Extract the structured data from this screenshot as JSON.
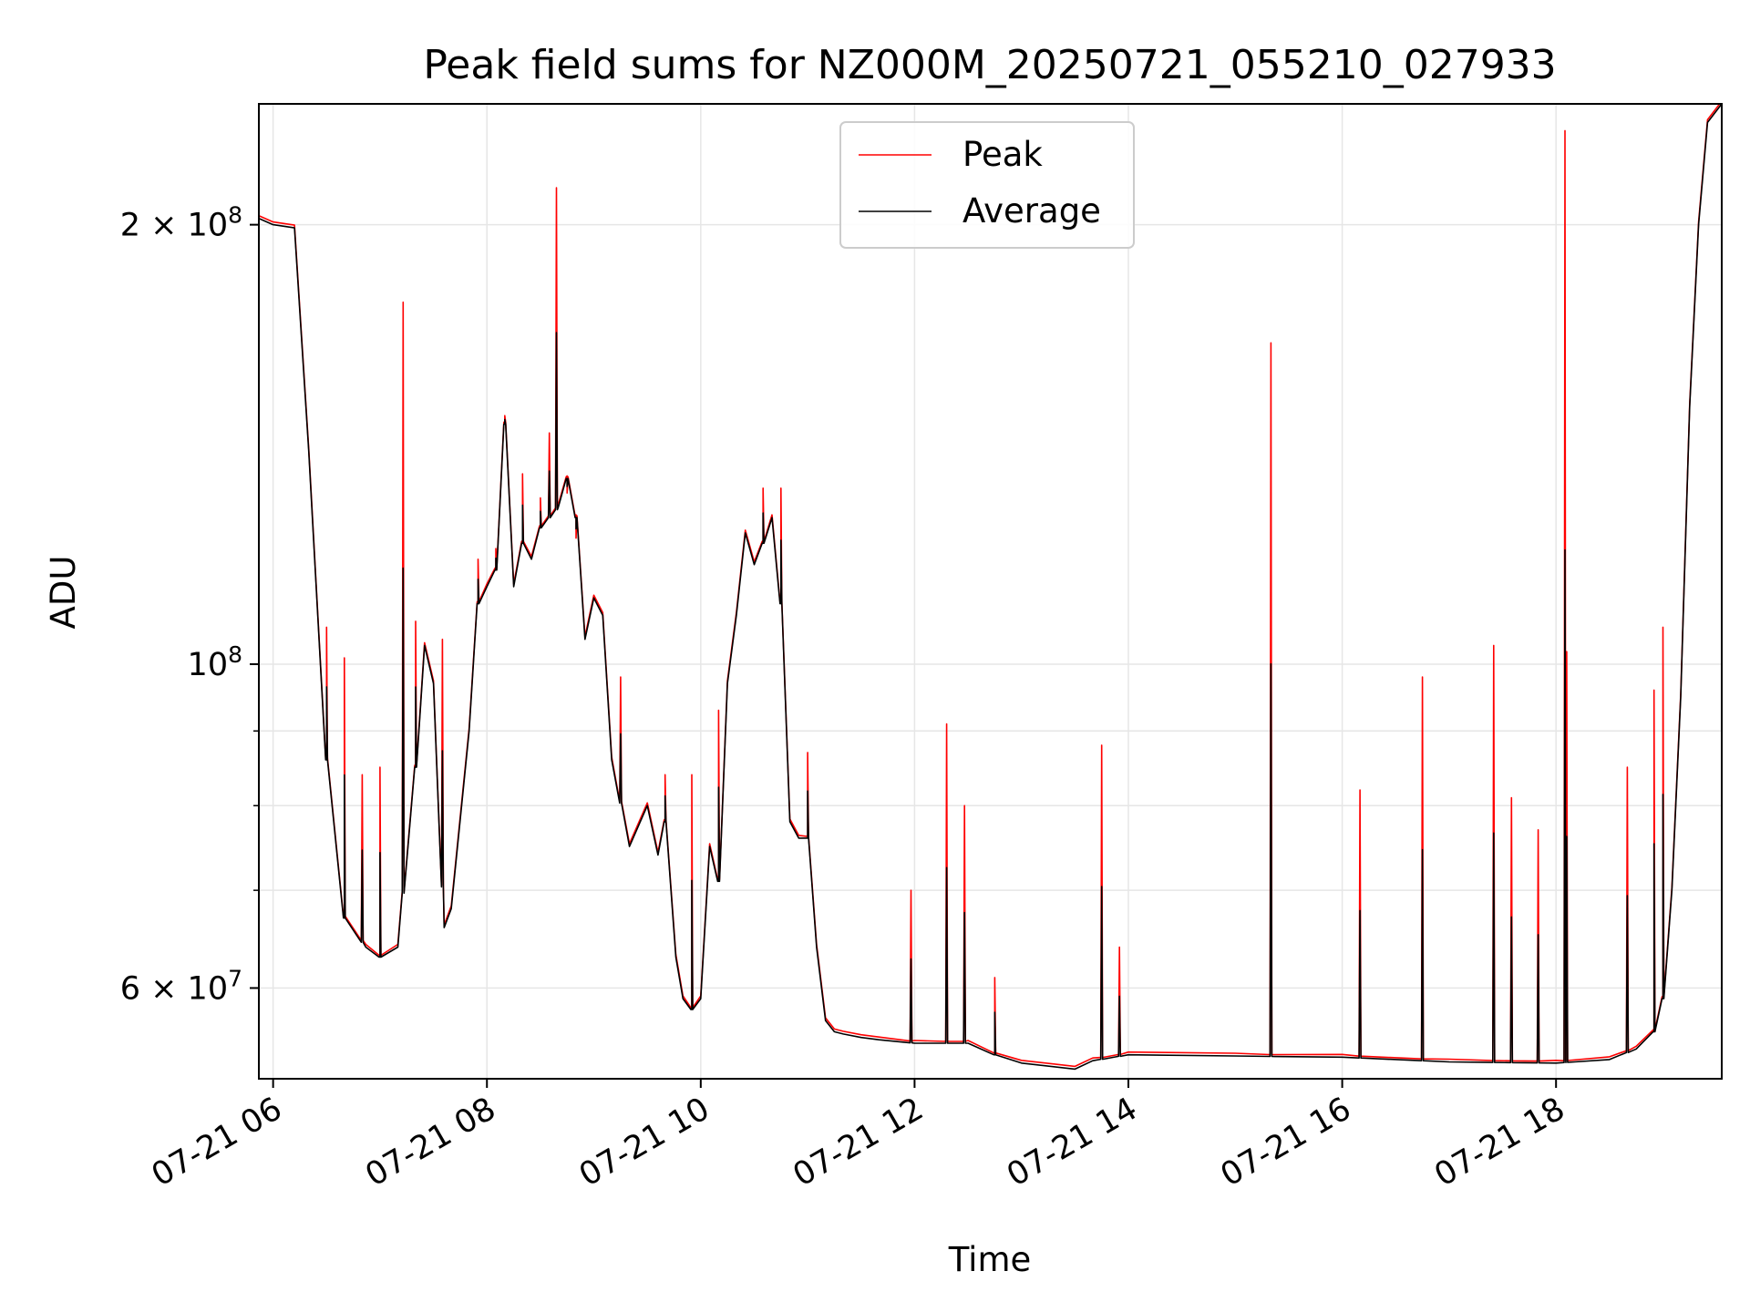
{
  "chart_data": {
    "type": "line",
    "title": "Peak field sums for NZ000M_20250721_055210_027933",
    "xlabel": "Time",
    "ylabel": "ADU",
    "yscale": "log",
    "ylim": [
      52000000,
      242000000
    ],
    "xlim": [
      "2025-07-21 05:52",
      "2025-07-21 19:33"
    ],
    "grid": true,
    "legend": {
      "placement": "top-center",
      "entries": [
        "Peak",
        "Average"
      ]
    },
    "x_ticks": [
      {
        "value": "2025-07-21 06:00",
        "label": "07-21 06"
      },
      {
        "value": "2025-07-21 08:00",
        "label": "07-21 08"
      },
      {
        "value": "2025-07-21 10:00",
        "label": "07-21 10"
      },
      {
        "value": "2025-07-21 12:00",
        "label": "07-21 12"
      },
      {
        "value": "2025-07-21 14:00",
        "label": "07-21 14"
      },
      {
        "value": "2025-07-21 16:00",
        "label": "07-21 16"
      },
      {
        "value": "2025-07-21 18:00",
        "label": "07-21 18"
      }
    ],
    "y_major_ticks": [
      {
        "value": 60000000,
        "mantissa": "6",
        "exponent": "7"
      },
      {
        "value": 100000000,
        "mantissa": "",
        "exponent": "8"
      },
      {
        "value": 200000000,
        "mantissa": "2",
        "exponent": "8"
      }
    ],
    "y_minor_ticks": [
      70000000,
      80000000,
      90000000
    ],
    "times": [
      "2025-07-21 05:52",
      "2025-07-21 06:00",
      "2025-07-21 06:12",
      "2025-07-21 06:20",
      "2025-07-21 06:30",
      "2025-07-21 06:40",
      "2025-07-21 06:52",
      "2025-07-21 07:00",
      "2025-07-21 07:10",
      "2025-07-21 07:20",
      "2025-07-21 07:25",
      "2025-07-21 07:30",
      "2025-07-21 07:36",
      "2025-07-21 07:40",
      "2025-07-21 07:50",
      "2025-07-21 07:55",
      "2025-07-21 08:00",
      "2025-07-21 08:05",
      "2025-07-21 08:10",
      "2025-07-21 08:15",
      "2025-07-21 08:20",
      "2025-07-21 08:25",
      "2025-07-21 08:30",
      "2025-07-21 08:40",
      "2025-07-21 08:45",
      "2025-07-21 08:50",
      "2025-07-21 08:55",
      "2025-07-21 09:00",
      "2025-07-21 09:05",
      "2025-07-21 09:10",
      "2025-07-21 09:20",
      "2025-07-21 09:30",
      "2025-07-21 09:36",
      "2025-07-21 09:40",
      "2025-07-21 09:46",
      "2025-07-21 09:50",
      "2025-07-21 09:55",
      "2025-07-21 10:00",
      "2025-07-21 10:05",
      "2025-07-21 10:10",
      "2025-07-21 10:15",
      "2025-07-21 10:20",
      "2025-07-21 10:25",
      "2025-07-21 10:30",
      "2025-07-21 10:35",
      "2025-07-21 10:40",
      "2025-07-21 10:45",
      "2025-07-21 10:50",
      "2025-07-21 10:55",
      "2025-07-21 11:00",
      "2025-07-21 11:05",
      "2025-07-21 11:10",
      "2025-07-21 11:15",
      "2025-07-21 11:20",
      "2025-07-21 11:30",
      "2025-07-21 11:40",
      "2025-07-21 12:00",
      "2025-07-21 12:30",
      "2025-07-21 12:45",
      "2025-07-21 13:00",
      "2025-07-21 13:30",
      "2025-07-21 13:40",
      "2025-07-21 14:00",
      "2025-07-21 15:00",
      "2025-07-21 16:00",
      "2025-07-21 17:00",
      "2025-07-21 18:00",
      "2025-07-21 18:30",
      "2025-07-21 18:45",
      "2025-07-21 18:55",
      "2025-07-21 19:00",
      "2025-07-21 19:05",
      "2025-07-21 19:10",
      "2025-07-21 19:15",
      "2025-07-21 19:20",
      "2025-07-21 19:25",
      "2025-07-21 19:33"
    ],
    "series": [
      {
        "name": "Average",
        "color": "#000000",
        "values": [
          202000000,
          200000000,
          199000000,
          140000000,
          86000000,
          67000000,
          64000000,
          63000000,
          64000000,
          85000000,
          103000000,
          97000000,
          66000000,
          68000000,
          90000000,
          110000000,
          113000000,
          116000000,
          146000000,
          113000000,
          121000000,
          118000000,
          124000000,
          128000000,
          134000000,
          126000000,
          104000000,
          111000000,
          108000000,
          86000000,
          75000000,
          80000000,
          74000000,
          78000000,
          63000000,
          59000000,
          58000000,
          59000000,
          75000000,
          71000000,
          97000000,
          108000000,
          123000000,
          117000000,
          121000000,
          126000000,
          110000000,
          78000000,
          76000000,
          76000000,
          64000000,
          57000000,
          56000000,
          55800000,
          55500000,
          55300000,
          55000000,
          55000000,
          54000000,
          53300000,
          52800000,
          53500000,
          54000000,
          53900000,
          53800000,
          53400000,
          53300000,
          53600000,
          54500000,
          56000000,
          59000000,
          70000000,
          95000000,
          150000000,
          200000000,
          235000000,
          242000000
        ]
      },
      {
        "name": "Peak",
        "color": "#ff0000",
        "spikes": [
          [
            "2025-07-21 06:30",
            106000000
          ],
          [
            "2025-07-21 06:40",
            101000000
          ],
          [
            "2025-07-21 06:50",
            84000000
          ],
          [
            "2025-07-21 07:00",
            85000000
          ],
          [
            "2025-07-21 07:13",
            177000000
          ],
          [
            "2025-07-21 07:20",
            107000000
          ],
          [
            "2025-07-21 07:35",
            104000000
          ],
          [
            "2025-07-21 07:55",
            118000000
          ],
          [
            "2025-07-21 08:05",
            120000000
          ],
          [
            "2025-07-21 08:10",
            148000000
          ],
          [
            "2025-07-21 08:20",
            135000000
          ],
          [
            "2025-07-21 08:30",
            130000000
          ],
          [
            "2025-07-21 08:35",
            144000000
          ],
          [
            "2025-07-21 08:39",
            212000000
          ],
          [
            "2025-07-21 08:45",
            131000000
          ],
          [
            "2025-07-21 08:50",
            122000000
          ],
          [
            "2025-07-21 09:15",
            98000000
          ],
          [
            "2025-07-21 09:40",
            84000000
          ],
          [
            "2025-07-21 09:55",
            84000000
          ],
          [
            "2025-07-21 10:10",
            93000000
          ],
          [
            "2025-07-21 10:35",
            132000000
          ],
          [
            "2025-07-21 10:45",
            132000000
          ],
          [
            "2025-07-21 11:00",
            87000000
          ],
          [
            "2025-07-21 11:58",
            70000000
          ],
          [
            "2025-07-21 12:18",
            91000000
          ],
          [
            "2025-07-21 12:28",
            80000000
          ],
          [
            "2025-07-21 12:45",
            61000000
          ],
          [
            "2025-07-21 13:45",
            88000000
          ],
          [
            "2025-07-21 13:55",
            64000000
          ],
          [
            "2025-07-21 15:20",
            166000000
          ],
          [
            "2025-07-21 16:10",
            82000000
          ],
          [
            "2025-07-21 16:45",
            98000000
          ],
          [
            "2025-07-21 17:25",
            103000000
          ],
          [
            "2025-07-21 17:35",
            81000000
          ],
          [
            "2025-07-21 17:50",
            77000000
          ],
          [
            "2025-07-21 18:05",
            232000000
          ],
          [
            "2025-07-21 18:06",
            102000000
          ],
          [
            "2025-07-21 18:40",
            85000000
          ],
          [
            "2025-07-21 18:55",
            96000000
          ],
          [
            "2025-07-21 19:00",
            106000000
          ]
        ]
      }
    ]
  }
}
